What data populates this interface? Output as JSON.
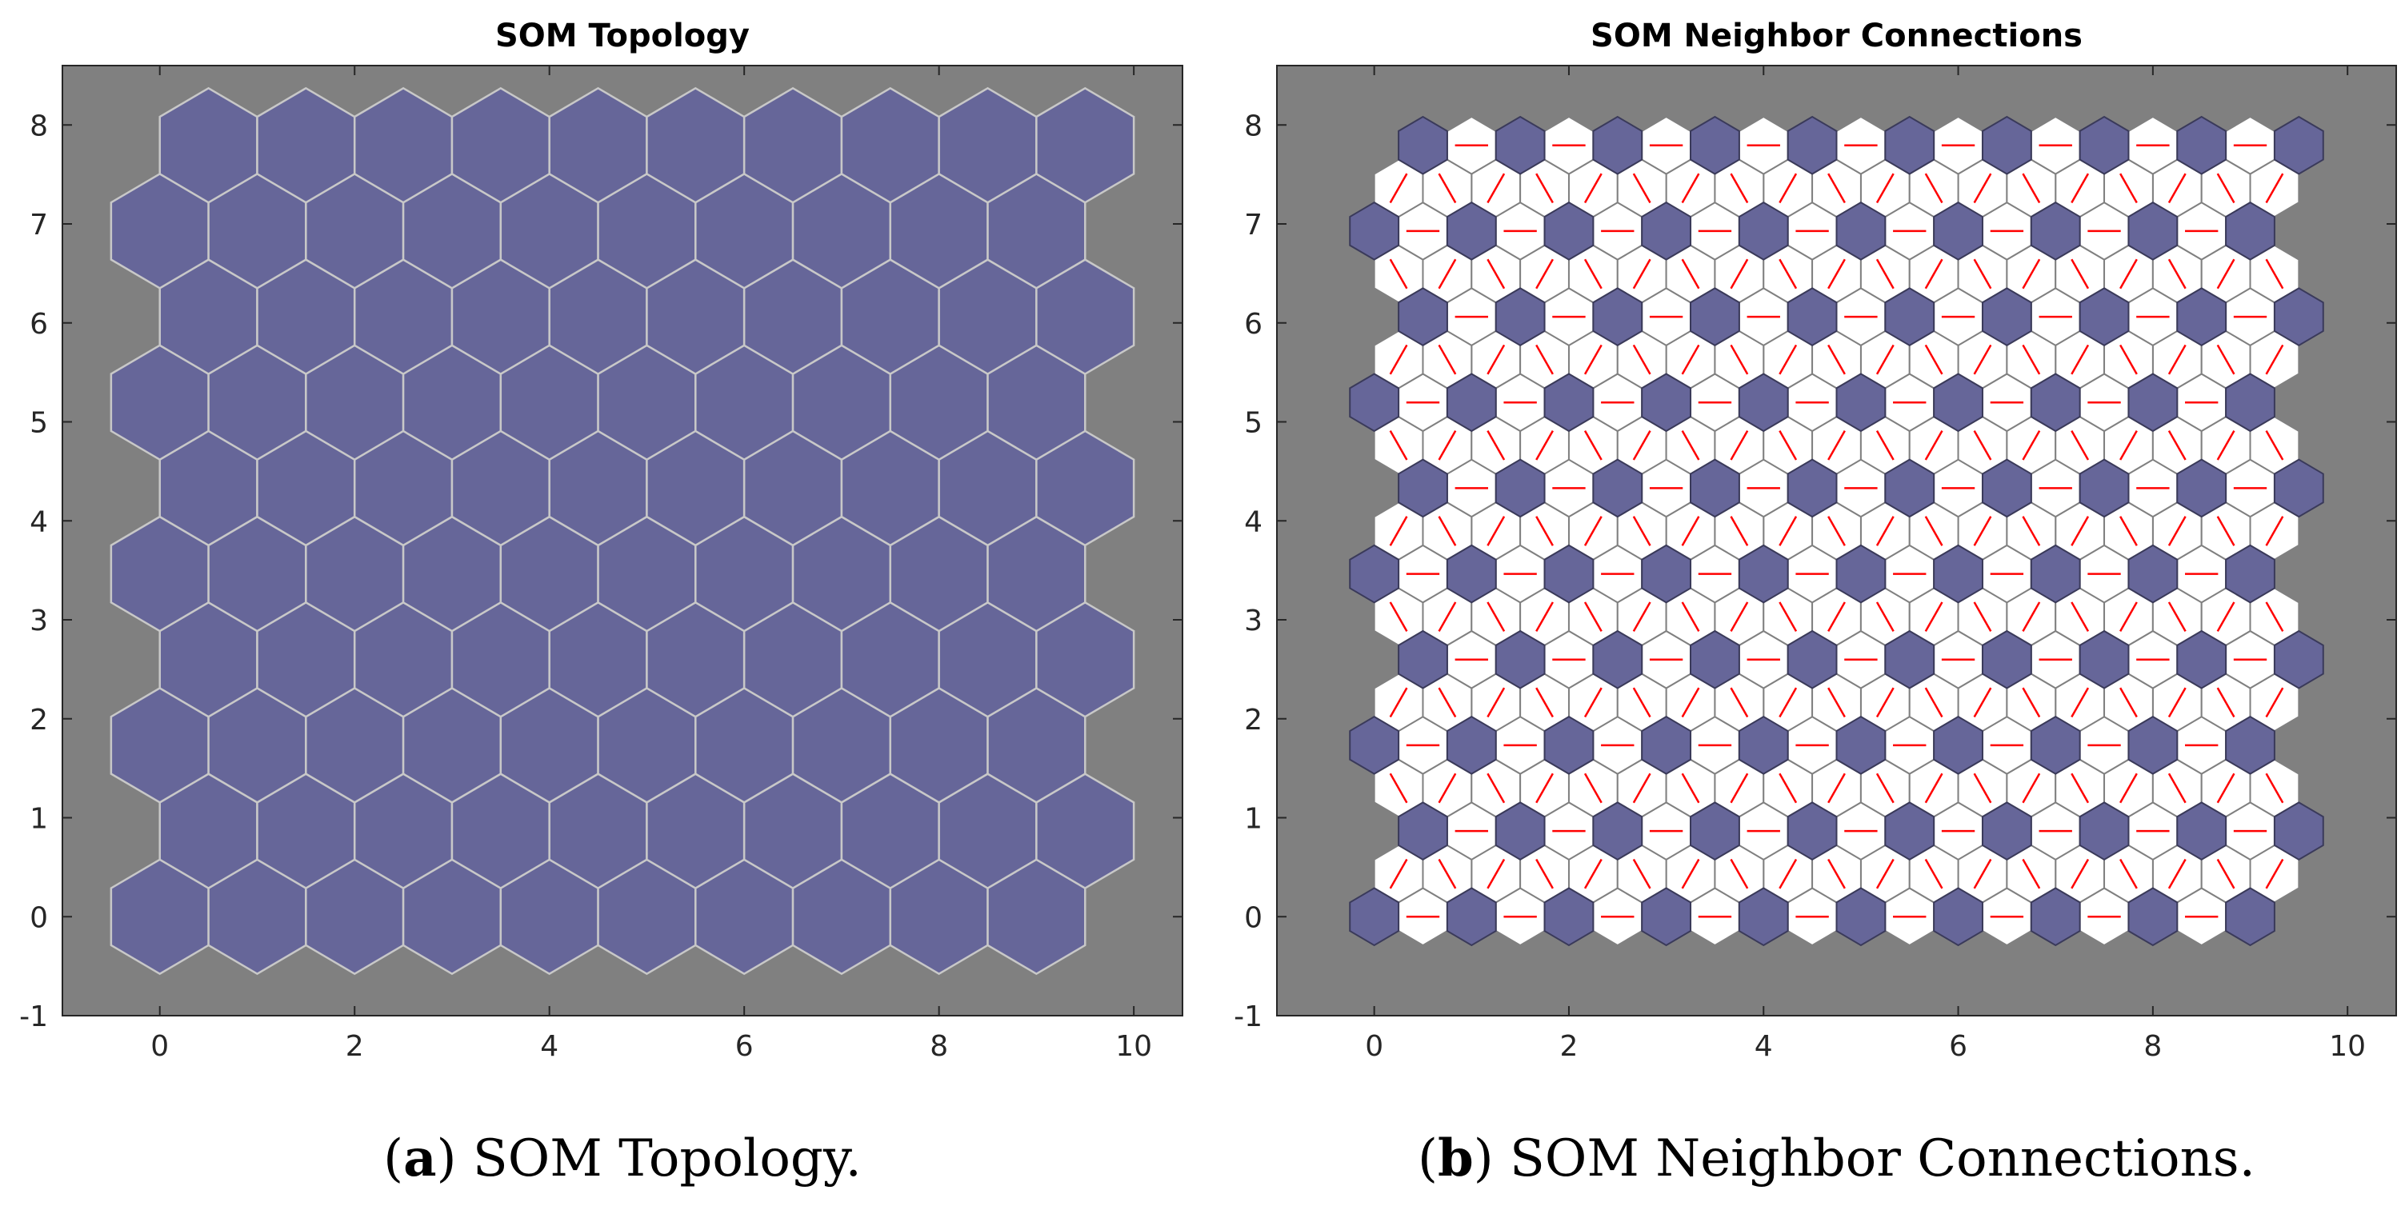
{
  "chart_data": [
    {
      "type": "hex-grid",
      "title": "SOM Topology",
      "caption_letter": "a",
      "caption_text": "SOM Topology.",
      "grid": {
        "rows": 10,
        "cols": 10,
        "odd_row_offset": 0.5,
        "row_spacing": 0.866
      },
      "xlim": [
        -1,
        10.5
      ],
      "ylim": [
        -1,
        8.6
      ],
      "xticks": [
        0,
        2,
        4,
        6,
        8,
        10
      ],
      "yticks": [
        -1,
        0,
        1,
        2,
        3,
        4,
        5,
        6,
        7,
        8
      ],
      "colors": {
        "background": "#808080",
        "neuron": "#666699",
        "edge": "#c8c8c8"
      }
    },
    {
      "type": "hex-grid",
      "title": "SOM Neighbor Connections",
      "caption_letter": "b",
      "caption_text": "SOM Neighbor Connections.",
      "grid": {
        "rows": 10,
        "cols": 10,
        "odd_row_offset": 0.5,
        "row_spacing": 0.866
      },
      "xlim": [
        -1,
        10.5
      ],
      "ylim": [
        -1,
        8.6
      ],
      "xticks": [
        0,
        2,
        4,
        6,
        8,
        10
      ],
      "yticks": [
        -1,
        0,
        1,
        2,
        3,
        4,
        5,
        6,
        7,
        8
      ],
      "colors": {
        "background": "#808080",
        "neuron": "#666699",
        "connection_cell": "#ffffff",
        "connection_line": "#ff0000",
        "edge": "#808080"
      }
    }
  ]
}
